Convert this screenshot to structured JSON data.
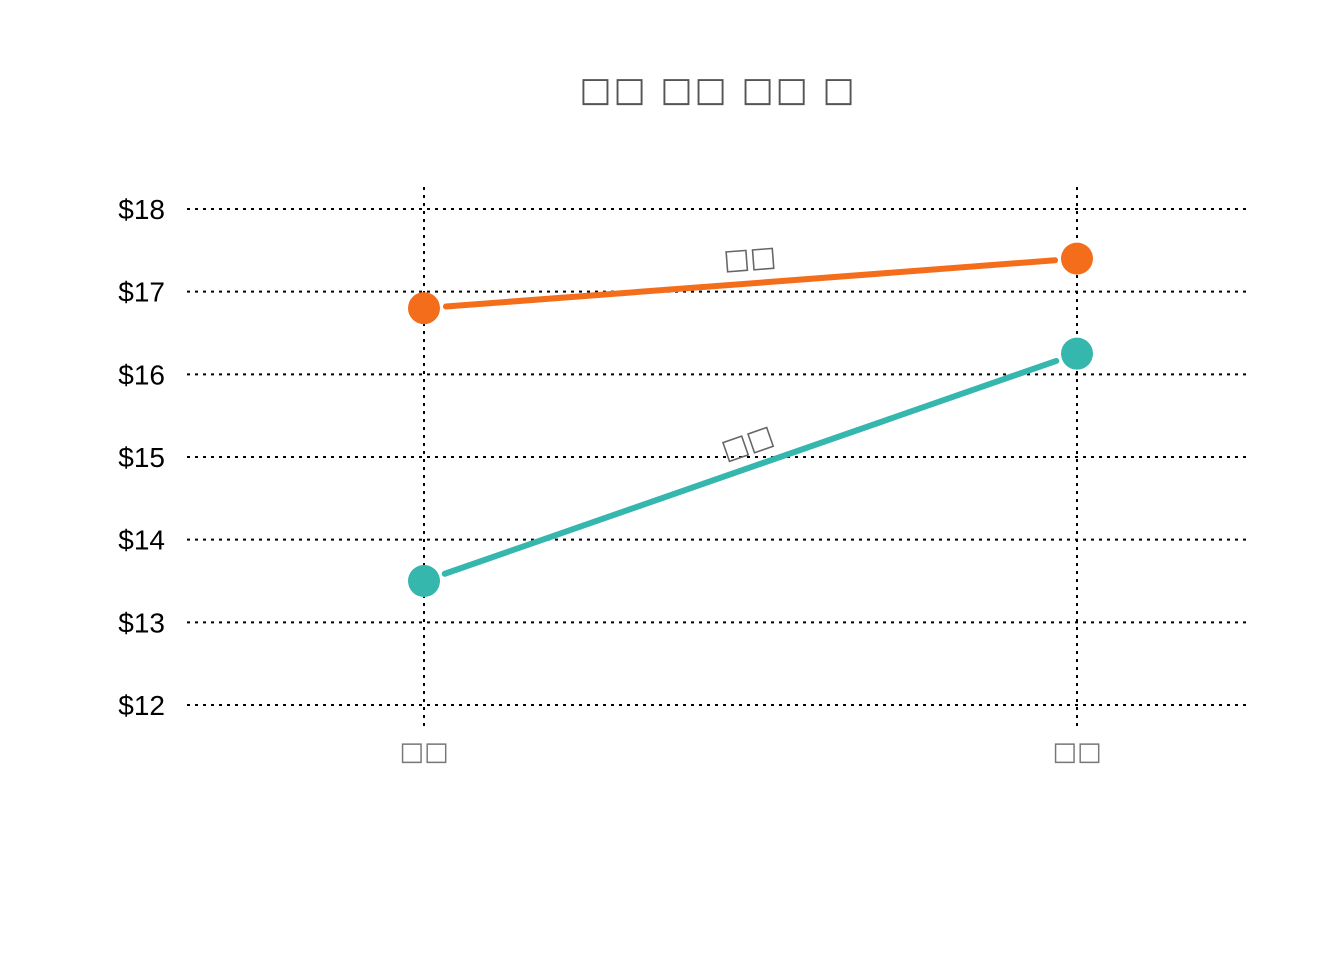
{
  "chart_data": {
    "type": "line",
    "title": "□□ □□ □□ □",
    "categories": [
      "□□",
      "□□"
    ],
    "ylim": [
      12,
      18
    ],
    "yticks": [
      12,
      13,
      14,
      15,
      16,
      17,
      18
    ],
    "ytick_prefix": "$",
    "grid": true,
    "series": [
      {
        "name": "□□",
        "values": [
          16.8,
          17.4
        ],
        "color": "#F46D1A"
      },
      {
        "name": "□□",
        "values": [
          13.5,
          16.25
        ],
        "color": "#35B7AE"
      }
    ]
  }
}
